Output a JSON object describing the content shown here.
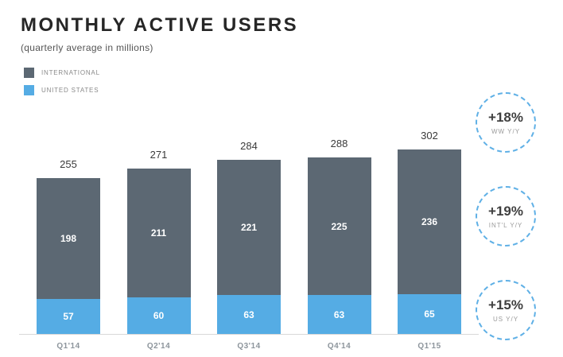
{
  "title": "MONTHLY ACTIVE USERS",
  "subtitle": "(quarterly average in millions)",
  "legend": [
    {
      "label": "INTERNATIONAL",
      "color": "#5c6873"
    },
    {
      "label": "UNITED STATES",
      "color": "#55ace4"
    }
  ],
  "chart_data": {
    "type": "bar",
    "stacked": true,
    "title": "MONTHLY ACTIVE USERS",
    "subtitle": "(quarterly average in millions)",
    "categories": [
      "Q1'14",
      "Q2'14",
      "Q3'14",
      "Q4'14",
      "Q1'15"
    ],
    "series": [
      {
        "name": "INTERNATIONAL",
        "color": "#5c6873",
        "values": [
          198,
          211,
          221,
          225,
          236
        ]
      },
      {
        "name": "UNITED STATES",
        "color": "#55ace4",
        "values": [
          57,
          60,
          63,
          63,
          65
        ]
      }
    ],
    "totals": [
      255,
      271,
      284,
      288,
      302
    ],
    "ylim": [
      0,
      310
    ],
    "grid": false,
    "legend_position": "top-left"
  },
  "badges": [
    {
      "value": "+18%",
      "label": "WW Y/Y"
    },
    {
      "value": "+19%",
      "label": "INT'L Y/Y"
    },
    {
      "value": "+15%",
      "label": "US Y/Y"
    }
  ]
}
